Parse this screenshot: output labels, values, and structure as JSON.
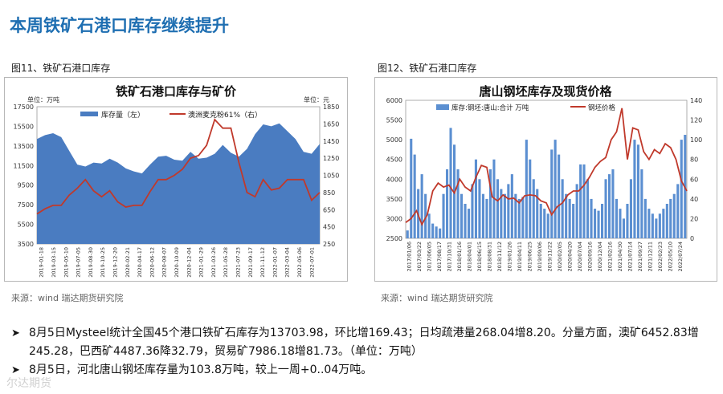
{
  "slide": {
    "title": "本周铁矿石港口库存继续提升"
  },
  "figures": [
    {
      "label": "图11、铁矿石港口库存",
      "source": "来源：wind   瑞达期货研究院"
    },
    {
      "label": "图12、铁矿石港口库存",
      "source": "来源：wind   瑞达期货研究院"
    }
  ],
  "bullets": [
    "8月5日Mysteel统计全国45个港口铁矿石库存为13703.98，环比增169.43；日均疏港量268.04增8.20。分量方面，澳矿6452.83增245.28，巴西矿4487.36降32.79，贸易矿7986.18增81.73。（单位：万吨）",
    "8月5日，河北唐山钢坯库存量为103.8万吨，较上一周+0..04万吨。"
  ],
  "watermark": "尔达期货",
  "colors": {
    "title": "#1f6fb2",
    "area": "#4a7cc1",
    "line": "#c0392b",
    "bars": "#5b8fd1"
  },
  "chart_data": [
    {
      "type": "area+line",
      "title": "铁矿石港口库存与矿价",
      "unit_left": "单位：万吨",
      "unit_right": "单位：元",
      "left_ticks": [
        "17500",
        "15500",
        "13500",
        "11500",
        "9500",
        "7500",
        "5500",
        "3500"
      ],
      "right_ticks": [
        "1850",
        "1650",
        "1450",
        "1250",
        "1050",
        "850",
        "650",
        "450",
        "250"
      ],
      "ylim_left": [
        3500,
        17500
      ],
      "ylim_right": [
        250,
        1850
      ],
      "x_ticks": [
        "2019-01-18",
        "2019-03-15",
        "2019-05-10",
        "2019-07-05",
        "2019-08-30",
        "2019-10-25",
        "2019-12-20",
        "2020-02-21",
        "2020-04-17",
        "2020-06-12",
        "2020-08-07",
        "2020-10-09",
        "2020-12-04",
        "2021-01-29",
        "2021-03-26",
        "2021-05-28",
        "2021-07-23",
        "2021-09-17",
        "2021-11-12",
        "2022-01-07",
        "2022-03-04",
        "2022-05-06",
        "2022-07-01"
      ],
      "series": [
        {
          "name": "库存量（左）",
          "type": "area",
          "values": [
            14200,
            14600,
            14800,
            14400,
            13000,
            11600,
            11400,
            11800,
            11700,
            12200,
            11800,
            11200,
            10900,
            10700,
            11600,
            12400,
            12500,
            12100,
            12000,
            12900,
            12200,
            12300,
            12700,
            13600,
            12800,
            12400,
            13200,
            14700,
            15700,
            15500,
            15800,
            15000,
            14200,
            12900,
            12700,
            13700
          ]
        },
        {
          "name": "澳洲麦克粉61%（右）",
          "type": "line",
          "values": [
            600,
            660,
            700,
            700,
            820,
            900,
            1000,
            870,
            800,
            870,
            740,
            680,
            700,
            700,
            860,
            1000,
            1000,
            1050,
            1120,
            1250,
            1280,
            1400,
            1700,
            1600,
            1600,
            1200,
            850,
            800,
            1000,
            880,
            900,
            1000,
            1000,
            1000,
            760,
            850
          ]
        }
      ]
    },
    {
      "type": "bar+line",
      "title": "唐山钢坯库存及现货价格",
      "left_ticks": [
        "6000",
        "5500",
        "5000",
        "4500",
        "4000",
        "3500",
        "3000",
        "2500"
      ],
      "right_ticks": [
        "140",
        "120",
        "100",
        "80",
        "60",
        "40",
        "20",
        "0"
      ],
      "ylim_left": [
        2500,
        6000
      ],
      "ylim_right": [
        0,
        140
      ],
      "x_ticks": [
        "2017/01/06",
        "2017/03/22",
        "2017/06/05",
        "2017/08/17",
        "2017/10/31",
        "2018/01/16",
        "2018/04/01",
        "2018/06/15",
        "2018/08/31",
        "2018/11/12",
        "2019/01/26",
        "2019/04/11",
        "2019/06/25",
        "2019/09/06",
        "2019/11/22",
        "2020/02/05",
        "2020/04/20",
        "2020/07/04",
        "2020/09/16",
        "2020/12/04",
        "2021/02/16",
        "2021/04/30",
        "2021/07/14",
        "2021/09/27",
        "2021/12/11",
        "2022/02/23",
        "2022/05/10",
        "2022/07/24"
      ],
      "series": [
        {
          "name": "库存:钢坯:唐山:合计  万吨",
          "type": "bar",
          "axis": "right",
          "values": [
            8,
            101,
            85,
            50,
            65,
            45,
            25,
            15,
            12,
            10,
            45,
            70,
            112,
            95,
            70,
            45,
            35,
            30,
            55,
            80,
            60,
            45,
            40,
            70,
            80,
            60,
            50,
            45,
            55,
            65,
            45,
            40,
            42,
            100,
            80,
            60,
            50,
            35,
            30,
            25,
            90,
            100,
            85,
            60,
            45,
            40,
            35,
            55,
            75,
            75,
            60,
            40,
            30,
            28,
            35,
            60,
            65,
            70,
            40,
            30,
            20,
            35,
            60,
            100,
            95,
            70,
            40,
            30,
            25,
            20,
            25,
            30,
            35,
            40,
            45,
            55,
            100,
            105
          ]
        },
        {
          "name": "钢坯价格",
          "type": "line",
          "axis": "left",
          "values": [
            2900,
            3000,
            3200,
            2850,
            3100,
            3700,
            3900,
            3800,
            3850,
            3650,
            4000,
            3800,
            3700,
            4050,
            4350,
            4300,
            3550,
            3450,
            3600,
            3500,
            3520,
            3400,
            3580,
            3600,
            3580,
            3450,
            3400,
            3100,
            3300,
            3400,
            3600,
            3700,
            3700,
            3850,
            4050,
            4300,
            4450,
            4550,
            5000,
            5200,
            5800,
            4500,
            5300,
            5250,
            4700,
            4500,
            4750,
            4650,
            4900,
            4800,
            4500,
            3950,
            3700
          ]
        }
      ]
    }
  ]
}
